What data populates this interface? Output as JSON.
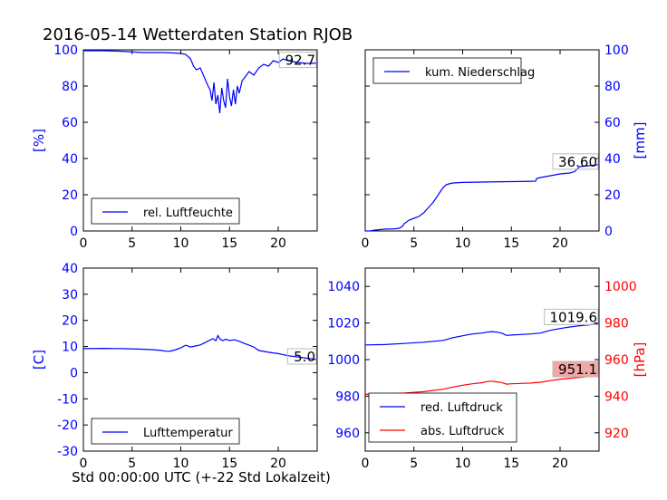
{
  "title": "2016-05-14 Wetterdaten Station RJOB",
  "xlabel": "Std 00:00:00 UTC (+-22 Std Lokalzeit)",
  "colors": {
    "blue": "#0000ff",
    "red": "#ff0000",
    "black": "#000000",
    "label_box_red": "#f3a6a6"
  },
  "chart_data": [
    {
      "type": "line",
      "panel": "top-left",
      "ylabel": "[%]",
      "xlim": [
        0,
        24
      ],
      "ylim": [
        0,
        100
      ],
      "xticks": [
        0,
        5,
        10,
        15,
        20
      ],
      "yticks": [
        0,
        20,
        40,
        60,
        80,
        100
      ],
      "legend": "lower-left",
      "last_value_label": "92.7",
      "series": [
        {
          "name": "rel. Luftfeuchte",
          "color": "#0000ff",
          "x": [
            0,
            2,
            4,
            6,
            8,
            9,
            10,
            10.5,
            11,
            11.3,
            11.6,
            12,
            12.4,
            12.8,
            13,
            13.2,
            13.4,
            13.6,
            13.8,
            14,
            14.2,
            14.4,
            14.6,
            14.8,
            15,
            15.2,
            15.4,
            15.6,
            15.8,
            16,
            16.3,
            16.6,
            17,
            17.5,
            18,
            18.5,
            19,
            19.5,
            20,
            20.5,
            21,
            22,
            23,
            24
          ],
          "y": [
            99.5,
            99.5,
            99.2,
            98.5,
            98.5,
            98.3,
            98,
            97.5,
            95,
            91,
            89,
            90,
            85,
            80,
            78,
            72,
            82,
            70,
            75,
            65,
            79,
            72,
            68,
            84,
            74,
            69,
            78,
            70,
            80,
            76,
            83,
            85,
            88,
            86,
            90,
            92,
            91,
            94,
            93,
            95,
            94,
            93,
            92.5,
            92.7
          ]
        }
      ]
    },
    {
      "type": "line",
      "panel": "top-right",
      "ylabel": "[mm]",
      "xlim": [
        0,
        24
      ],
      "ylim": [
        0,
        100
      ],
      "xticks": [
        0,
        5,
        10,
        15,
        20
      ],
      "yticks": [
        0,
        20,
        40,
        60,
        80,
        100
      ],
      "legend": "upper-left",
      "last_value_label": "36.60",
      "series": [
        {
          "name": "kum. Niederschlag",
          "color": "#0000ff",
          "x": [
            0,
            0.5,
            1,
            2,
            3,
            3.5,
            3.8,
            4,
            4.5,
            5,
            5.5,
            6,
            6.5,
            7,
            7.5,
            8,
            8.3,
            8.6,
            9,
            10,
            12,
            14,
            16,
            17.5,
            17.6,
            18,
            19,
            20,
            21,
            21.5,
            22,
            24
          ],
          "y": [
            0,
            0,
            0.5,
            1,
            1.2,
            1.5,
            2.5,
            4,
            6,
            7,
            8,
            10,
            13,
            16,
            20,
            24,
            25.5,
            26,
            26.5,
            26.8,
            27,
            27.2,
            27.3,
            27.5,
            29,
            29.5,
            30.5,
            31.5,
            32,
            32.8,
            35.5,
            36.6
          ]
        }
      ]
    },
    {
      "type": "line",
      "panel": "bottom-left",
      "ylabel": "[C]",
      "xlim": [
        0,
        24
      ],
      "ylim": [
        -30,
        40
      ],
      "xticks": [
        0,
        5,
        10,
        15,
        20
      ],
      "yticks": [
        -30,
        -20,
        -10,
        0,
        10,
        20,
        30,
        40
      ],
      "legend": "lower-left",
      "last_value_label": "5.0",
      "series": [
        {
          "name": "Lufttemperatur",
          "color": "#0000ff",
          "x": [
            0,
            2,
            4,
            6,
            7,
            8,
            8.5,
            9,
            9.5,
            10,
            10.5,
            11,
            11.5,
            12,
            12.5,
            13,
            13.3,
            13.6,
            13.8,
            14,
            14.3,
            14.6,
            15,
            15.5,
            16,
            16.5,
            17,
            17.5,
            18,
            19,
            20,
            21,
            22,
            23,
            24
          ],
          "y": [
            9.2,
            9.3,
            9.2,
            9,
            8.8,
            8.5,
            8.2,
            8.3,
            8.8,
            9.5,
            10.5,
            9.8,
            10.2,
            10.6,
            11.5,
            12.5,
            13,
            12.2,
            14.2,
            13,
            12.2,
            12.8,
            12.3,
            12.6,
            12,
            11.2,
            10.5,
            9.8,
            8.5,
            7.8,
            7.3,
            6.5,
            6,
            5.5,
            5
          ]
        }
      ]
    },
    {
      "type": "line",
      "panel": "bottom-right",
      "ylabel": "[hPa]",
      "xlim": [
        0,
        24
      ],
      "ylim": [
        950,
        1050
      ],
      "ylim_right": [
        910,
        1010
      ],
      "xticks": [
        0,
        5,
        10,
        15,
        20
      ],
      "yticks": [
        960,
        980,
        1000,
        1020,
        1040
      ],
      "yticks_right": [
        920,
        940,
        960,
        980,
        1000
      ],
      "legend": "lower-left",
      "series": [
        {
          "name": "red. Luftdruck",
          "color": "#0000ff",
          "axis": "left",
          "last_value_label": "1019.6",
          "x": [
            0,
            2,
            4,
            6,
            8,
            9,
            10,
            11,
            12,
            12.5,
            13,
            13.5,
            14,
            14.5,
            15,
            16,
            17,
            18,
            19,
            20,
            21,
            22,
            23,
            24
          ],
          "y": [
            1008,
            1008.2,
            1008.8,
            1009.5,
            1010.5,
            1012,
            1013,
            1014,
            1014.5,
            1015,
            1015.3,
            1015,
            1014.5,
            1013.2,
            1013.4,
            1013.7,
            1014,
            1014.5,
            1016,
            1017,
            1017.8,
            1018.5,
            1019,
            1019.6
          ]
        },
        {
          "name": "abs. Luftdruck",
          "color": "#ff0000",
          "axis": "right",
          "last_value_label": "951.1",
          "x": [
            0,
            2,
            4,
            6,
            8,
            9,
            10,
            11,
            12,
            12.5,
            13,
            13.5,
            14,
            14.5,
            15,
            16,
            17,
            18,
            19,
            20,
            21,
            22,
            23,
            24
          ],
          "y": [
            941,
            941.2,
            941.7,
            942.5,
            943.8,
            945,
            946,
            946.8,
            947.4,
            948,
            948.2,
            947.8,
            947.5,
            946.6,
            946.8,
            947,
            947.2,
            947.6,
            948.5,
            949.3,
            949.8,
            950.3,
            950.8,
            951.1
          ]
        }
      ]
    }
  ]
}
